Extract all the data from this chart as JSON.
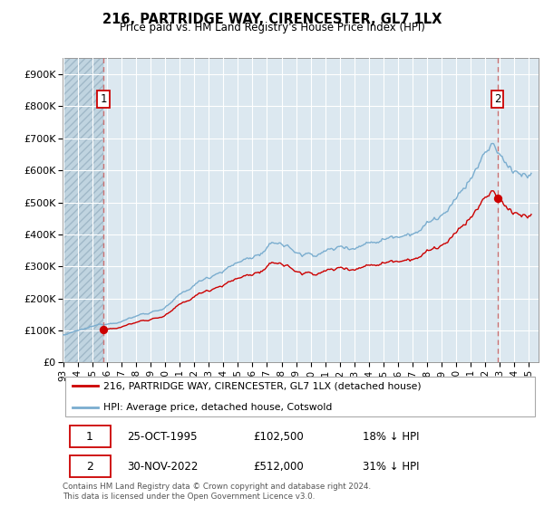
{
  "title": "216, PARTRIDGE WAY, CIRENCESTER, GL7 1LX",
  "subtitle": "Price paid vs. HM Land Registry's House Price Index (HPI)",
  "ylim": [
    0,
    950000
  ],
  "yticks": [
    0,
    100000,
    200000,
    300000,
    400000,
    500000,
    600000,
    700000,
    800000,
    900000
  ],
  "ytick_labels": [
    "£0",
    "£100K",
    "£200K",
    "£300K",
    "£400K",
    "£500K",
    "£600K",
    "£700K",
    "£800K",
    "£900K"
  ],
  "legend_line1": "216, PARTRIDGE WAY, CIRENCESTER, GL7 1LX (detached house)",
  "legend_line2": "HPI: Average price, detached house, Cotswold",
  "sale1_year": 1995,
  "sale1_month": 10,
  "sale1_price": 102500,
  "sale2_year": 2022,
  "sale2_month": 11,
  "sale2_price": 512000,
  "hpi_discount1": 0.82,
  "hpi_discount2": 0.69,
  "table_row1": [
    "1",
    "25-OCT-1995",
    "£102,500",
    "18% ↓ HPI"
  ],
  "table_row2": [
    "2",
    "30-NOV-2022",
    "£512,000",
    "31% ↓ HPI"
  ],
  "footer": "Contains HM Land Registry data © Crown copyright and database right 2024.\nThis data is licensed under the Open Government Licence v3.0.",
  "sale_color": "#cc0000",
  "hpi_color": "#7aadcf",
  "vline_color": "#cc6666",
  "grid_color": "#c8d8e8",
  "bg_color": "#dce8f0",
  "hatch_bg": "#c0d4e0"
}
